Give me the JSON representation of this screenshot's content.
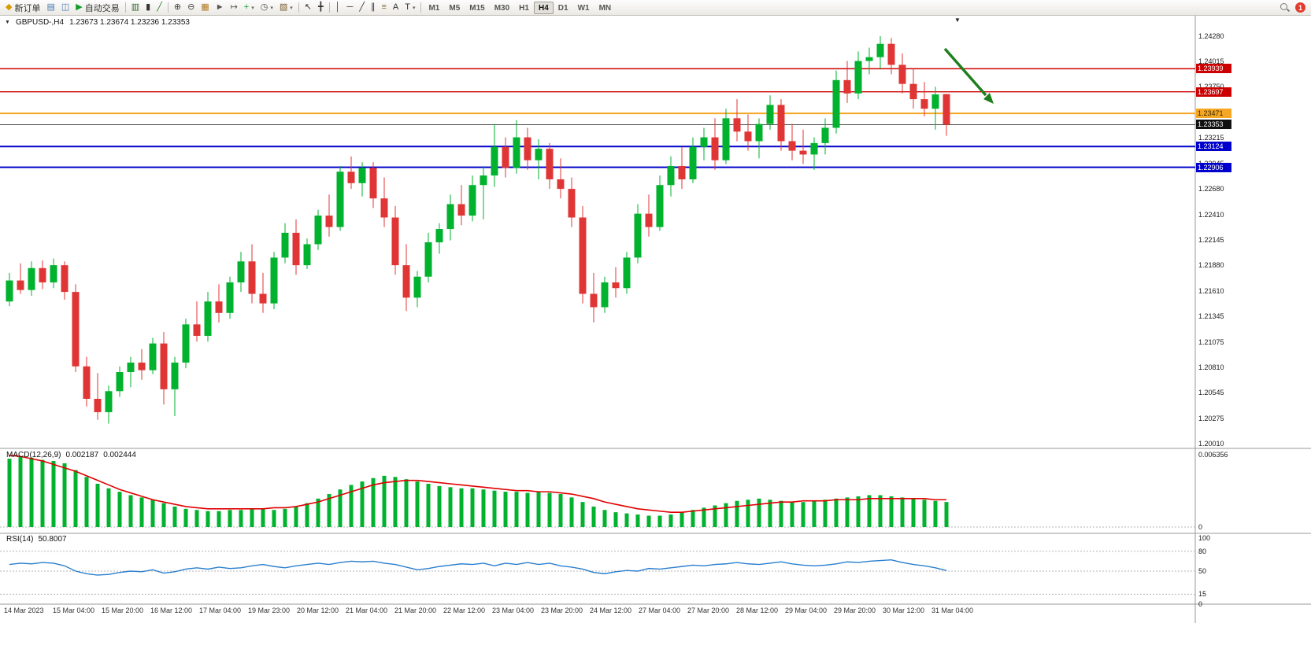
{
  "toolbar": {
    "badge_count": "1",
    "active_timeframe": "H4",
    "timeframes": [
      "M1",
      "M5",
      "M15",
      "M30",
      "H1",
      "H4",
      "D1",
      "W1",
      "MN"
    ],
    "buttons": [
      {
        "name": "new-order-button",
        "icon": "◆",
        "icon_color": "#d99a00",
        "label": "新订单"
      },
      {
        "name": "print-button",
        "icon": "▤",
        "icon_color": "#4a78b0"
      },
      {
        "name": "print-preview-button",
        "icon": "◫",
        "icon_color": "#4a78b0"
      },
      {
        "name": "autotrading-button",
        "icon": "▶",
        "icon_color": "#0f9d2a",
        "label": "自动交易"
      },
      {
        "sep": true
      },
      {
        "name": "bar-chart-button",
        "icon": "▥",
        "icon_color": "#356b2f"
      },
      {
        "name": "candlestick-chart-button",
        "icon": "▮",
        "icon_color": "#333333"
      },
      {
        "name": "line-chart-button",
        "icon": "╱",
        "icon_color": "#2d7a2d"
      },
      {
        "sep": true
      },
      {
        "name": "zoom-in-button",
        "icon": "⊕",
        "icon_color": "#444444"
      },
      {
        "name": "zoom-out-button",
        "icon": "⊖",
        "icon_color": "#444444"
      },
      {
        "name": "tile-windows-button",
        "icon": "▦",
        "icon_color": "#b07820"
      },
      {
        "name": "auto-scroll-button",
        "icon": "►",
        "icon_color": "#555555"
      },
      {
        "name": "chart-shift-button",
        "icon": "↦",
        "icon_color": "#555555"
      },
      {
        "name": "indicators-button",
        "icon": "+",
        "icon_color": "#0f9d2a",
        "caret": true
      },
      {
        "name": "periods-button",
        "icon": "◷",
        "icon_color": "#555555",
        "caret": true
      },
      {
        "name": "templates-button",
        "icon": "▨",
        "icon_color": "#7a5c2e",
        "caret": true
      },
      {
        "sep": true
      },
      {
        "name": "cursor-button",
        "icon": "↖",
        "icon_color": "#333333"
      },
      {
        "name": "crosshair-button",
        "icon": "╋",
        "icon_color": "#333333"
      },
      {
        "sep": true
      },
      {
        "name": "vertical-line-button",
        "icon": "│",
        "icon_color": "#333333"
      },
      {
        "name": "horizontal-line-button",
        "icon": "─",
        "icon_color": "#333333"
      },
      {
        "name": "trendline-button",
        "icon": "╱",
        "icon_color": "#333333"
      },
      {
        "name": "channel-button",
        "icon": "∥",
        "icon_color": "#333333"
      },
      {
        "name": "fibonacci-button",
        "icon": "≡",
        "icon_color": "#8a6d3b"
      },
      {
        "name": "text-button",
        "icon": "A",
        "icon_color": "#333333"
      },
      {
        "name": "arrows-button",
        "icon": "T",
        "icon_color": "#333333",
        "caret": true
      },
      {
        "sep": true
      }
    ]
  },
  "chart_data": {
    "type": "candlestick",
    "title": "GBPUSD-,H4",
    "ohlc_text": "1.23673 1.23674 1.23236 1.23353",
    "current": {
      "open": 1.23673,
      "high": 1.23674,
      "low": 1.23236,
      "close": 1.23353
    },
    "colors": {
      "up": "#00b22d",
      "down": "#e03535"
    },
    "price_axis": {
      "top": 1.2428,
      "bottom": 1.2001,
      "ticks": [
        "1.24280",
        "1.24015",
        "1.23750",
        "1.23480",
        "1.23215",
        "1.22945",
        "1.22680",
        "1.22410",
        "1.22145",
        "1.21880",
        "1.21610",
        "1.21345",
        "1.21075",
        "1.20810",
        "1.20545",
        "1.20275",
        "1.20010"
      ]
    },
    "time_ticks": [
      "14 Mar 2023",
      "15 Mar 04:00",
      "15 Mar 20:00",
      "16 Mar 12:00",
      "17 Mar 04:00",
      "19 Mar 23:00",
      "20 Mar 12:00",
      "21 Mar 04:00",
      "21 Mar 20:00",
      "22 Mar 12:00",
      "23 Mar 04:00",
      "23 Mar 20:00",
      "24 Mar 12:00",
      "27 Mar 04:00",
      "27 Mar 20:00",
      "28 Mar 12:00",
      "29 Mar 04:00",
      "29 Mar 20:00",
      "30 Mar 12:00",
      "31 Mar 04:00"
    ],
    "horizontal_lines": [
      {
        "price": 1.23939,
        "label": "1.23939",
        "color": "#cc0000",
        "tag_bg": "#cc0000",
        "tag_fg": "#ffffff",
        "width": 1.4
      },
      {
        "price": 1.23697,
        "label": "1.23697",
        "color": "#cc0000",
        "tag_bg": "#cc0000",
        "tag_fg": "#ffffff",
        "width": 1.4
      },
      {
        "price": 1.23471,
        "label": "1.23471",
        "color": "#f5a623",
        "tag_bg": "#f5a623",
        "tag_fg": "#3a2a00",
        "width": 2
      },
      {
        "price": 1.23353,
        "label": "1.23353",
        "color": "#505050",
        "tag_bg": "#111111",
        "tag_fg": "#ffffff",
        "width": 1
      },
      {
        "price": 1.23124,
        "label": "1.23124",
        "color": "#0000cc",
        "tag_bg": "#0000cc",
        "tag_fg": "#ffffff",
        "width": 2
      },
      {
        "price": 1.22906,
        "label": "1.22906",
        "color": "#0000cc",
        "tag_bg": "#0000cc",
        "tag_fg": "#ffffff",
        "width": 2
      }
    ],
    "annotation": {
      "type": "arrow",
      "direction": "down-right",
      "color": "#1e7e1e"
    },
    "candles": [
      [
        1.215,
        1.218,
        1.2145,
        1.2172
      ],
      [
        1.2172,
        1.219,
        1.2158,
        1.2162
      ],
      [
        1.2162,
        1.2192,
        1.2156,
        1.2185
      ],
      [
        1.2185,
        1.2193,
        1.2163,
        1.217
      ],
      [
        1.217,
        1.2195,
        1.2164,
        1.2188
      ],
      [
        1.2188,
        1.2192,
        1.2152,
        1.216
      ],
      [
        1.216,
        1.2168,
        1.2076,
        1.2082
      ],
      [
        1.2082,
        1.2092,
        1.204,
        1.2048
      ],
      [
        1.2048,
        1.2075,
        1.2026,
        1.2034
      ],
      [
        1.2034,
        1.2062,
        1.2022,
        1.2056
      ],
      [
        1.2056,
        1.2082,
        1.205,
        1.2076
      ],
      [
        1.2076,
        1.2092,
        1.206,
        1.2086
      ],
      [
        1.2086,
        1.21,
        1.2068,
        1.2078
      ],
      [
        1.2078,
        1.2112,
        1.2074,
        1.2106
      ],
      [
        1.2106,
        1.2118,
        1.2042,
        1.2058
      ],
      [
        1.2058,
        1.2092,
        1.203,
        1.2086
      ],
      [
        1.2086,
        1.2132,
        1.208,
        1.2126
      ],
      [
        1.2126,
        1.215,
        1.2108,
        1.2114
      ],
      [
        1.2114,
        1.216,
        1.2108,
        1.215
      ],
      [
        1.215,
        1.2168,
        1.2128,
        1.2138
      ],
      [
        1.2138,
        1.2176,
        1.2132,
        1.217
      ],
      [
        1.217,
        1.2202,
        1.216,
        1.2192
      ],
      [
        1.2192,
        1.221,
        1.2148,
        1.2158
      ],
      [
        1.2158,
        1.218,
        1.2138,
        1.2148
      ],
      [
        1.2148,
        1.2202,
        1.2142,
        1.2196
      ],
      [
        1.2196,
        1.2232,
        1.219,
        1.2222
      ],
      [
        1.2222,
        1.2236,
        1.2178,
        1.2188
      ],
      [
        1.2188,
        1.2216,
        1.2184,
        1.221
      ],
      [
        1.221,
        1.2246,
        1.2204,
        1.224
      ],
      [
        1.224,
        1.2262,
        1.2218,
        1.2228
      ],
      [
        1.2228,
        1.2292,
        1.2224,
        1.2286
      ],
      [
        1.2286,
        1.2302,
        1.2268,
        1.2274
      ],
      [
        1.2274,
        1.2296,
        1.226,
        1.229
      ],
      [
        1.229,
        1.2296,
        1.2248,
        1.2258
      ],
      [
        1.2258,
        1.228,
        1.2228,
        1.2238
      ],
      [
        1.2238,
        1.225,
        1.2178,
        1.2188
      ],
      [
        1.2188,
        1.221,
        1.214,
        1.2154
      ],
      [
        1.2154,
        1.2182,
        1.2144,
        1.2176
      ],
      [
        1.2176,
        1.2222,
        1.217,
        1.2212
      ],
      [
        1.2212,
        1.2232,
        1.22,
        1.2226
      ],
      [
        1.2226,
        1.2262,
        1.2214,
        1.2252
      ],
      [
        1.2252,
        1.2272,
        1.223,
        1.224
      ],
      [
        1.224,
        1.2282,
        1.2234,
        1.2272
      ],
      [
        1.2272,
        1.2292,
        1.2236,
        1.2282
      ],
      [
        1.2282,
        1.2336,
        1.227,
        1.2312
      ],
      [
        1.2312,
        1.2322,
        1.228,
        1.229
      ],
      [
        1.229,
        1.234,
        1.2284,
        1.2322
      ],
      [
        1.2322,
        1.2332,
        1.2288,
        1.2298
      ],
      [
        1.2298,
        1.232,
        1.2278,
        1.231
      ],
      [
        1.231,
        1.2316,
        1.2268,
        1.2278
      ],
      [
        1.2278,
        1.23,
        1.2258,
        1.2268
      ],
      [
        1.2268,
        1.228,
        1.2228,
        1.2238
      ],
      [
        1.2238,
        1.225,
        1.2148,
        1.2158
      ],
      [
        1.2158,
        1.218,
        1.2128,
        1.2144
      ],
      [
        1.2144,
        1.2176,
        1.2138,
        1.217
      ],
      [
        1.217,
        1.2186,
        1.2154,
        1.2164
      ],
      [
        1.2164,
        1.2202,
        1.2158,
        1.2196
      ],
      [
        1.2196,
        1.2252,
        1.219,
        1.2242
      ],
      [
        1.2242,
        1.2262,
        1.2218,
        1.2228
      ],
      [
        1.2228,
        1.2282,
        1.2224,
        1.2272
      ],
      [
        1.2272,
        1.2302,
        1.226,
        1.2292
      ],
      [
        1.2292,
        1.2312,
        1.2268,
        1.2278
      ],
      [
        1.2278,
        1.2322,
        1.2274,
        1.2312
      ],
      [
        1.2312,
        1.2332,
        1.2298,
        1.2322
      ],
      [
        1.2322,
        1.2342,
        1.2288,
        1.2298
      ],
      [
        1.2298,
        1.2352,
        1.2294,
        1.2342
      ],
      [
        1.2342,
        1.2362,
        1.2318,
        1.2328
      ],
      [
        1.2328,
        1.2346,
        1.2308,
        1.2318
      ],
      [
        1.2318,
        1.2342,
        1.23,
        1.2336
      ],
      [
        1.2336,
        1.2366,
        1.233,
        1.2356
      ],
      [
        1.2356,
        1.2362,
        1.2308,
        1.2318
      ],
      [
        1.2318,
        1.2336,
        1.2298,
        1.2308
      ],
      [
        1.2308,
        1.233,
        1.2294,
        1.2304
      ],
      [
        1.2304,
        1.2322,
        1.2288,
        1.2316
      ],
      [
        1.2316,
        1.2342,
        1.2304,
        1.2332
      ],
      [
        1.2332,
        1.2392,
        1.2326,
        1.2382
      ],
      [
        1.2382,
        1.2402,
        1.2358,
        1.2368
      ],
      [
        1.2368,
        1.2412,
        1.2362,
        1.2402
      ],
      [
        1.2402,
        1.2416,
        1.2388,
        1.2406
      ],
      [
        1.2406,
        1.2428,
        1.2394,
        1.242
      ],
      [
        1.242,
        1.2426,
        1.2388,
        1.2398
      ],
      [
        1.2398,
        1.241,
        1.2368,
        1.2378
      ],
      [
        1.2378,
        1.2394,
        1.2352,
        1.2362
      ],
      [
        1.2362,
        1.238,
        1.2344,
        1.2352
      ],
      [
        1.2352,
        1.2375,
        1.233,
        1.2367
      ],
      [
        1.23673,
        1.23674,
        1.23236,
        1.23353
      ]
    ],
    "macd": {
      "name": "MACD(12,26,9)",
      "main_value": "0.002187",
      "signal_value": "0.002444",
      "max": 0.006356,
      "max_label": "0.006356",
      "zero_label": "0",
      "histogram_color": "#00b22d",
      "signal_color": "#e00000",
      "histogram": [
        0.006,
        0.0062,
        0.0061,
        0.0059,
        0.0058,
        0.0056,
        0.005,
        0.0044,
        0.0038,
        0.0034,
        0.0031,
        0.0028,
        0.0026,
        0.0024,
        0.0021,
        0.0018,
        0.0016,
        0.0015,
        0.0014,
        0.0014,
        0.0015,
        0.0015,
        0.0016,
        0.0016,
        0.0015,
        0.0016,
        0.0018,
        0.0021,
        0.0025,
        0.0029,
        0.0033,
        0.0037,
        0.004,
        0.0043,
        0.0045,
        0.0044,
        0.0042,
        0.004,
        0.0038,
        0.0036,
        0.0035,
        0.0034,
        0.0034,
        0.0033,
        0.0032,
        0.0031,
        0.0031,
        0.003,
        0.0031,
        0.003,
        0.0029,
        0.0026,
        0.0022,
        0.0018,
        0.0015,
        0.0013,
        0.0012,
        0.0011,
        0.001,
        0.001,
        0.0011,
        0.0013,
        0.0015,
        0.0017,
        0.0019,
        0.0021,
        0.0023,
        0.0024,
        0.0025,
        0.0024,
        0.0023,
        0.0022,
        0.0022,
        0.0023,
        0.0024,
        0.0025,
        0.0026,
        0.0027,
        0.0028,
        0.0028,
        0.0027,
        0.0026,
        0.0025,
        0.0024,
        0.0023,
        0.0022
      ],
      "signal": [
        0.0063,
        0.0062,
        0.006,
        0.0058,
        0.0055,
        0.0052,
        0.0049,
        0.0045,
        0.0041,
        0.0037,
        0.0033,
        0.003,
        0.0027,
        0.0024,
        0.0022,
        0.002,
        0.0018,
        0.0017,
        0.0016,
        0.0016,
        0.0016,
        0.0016,
        0.0016,
        0.0016,
        0.0017,
        0.0017,
        0.0018,
        0.002,
        0.0022,
        0.0025,
        0.0028,
        0.0031,
        0.0034,
        0.0037,
        0.0039,
        0.004,
        0.0041,
        0.0041,
        0.004,
        0.0039,
        0.0038,
        0.0037,
        0.0036,
        0.0035,
        0.0034,
        0.0033,
        0.0032,
        0.0032,
        0.0031,
        0.0031,
        0.003,
        0.0029,
        0.0027,
        0.0025,
        0.0022,
        0.002,
        0.0018,
        0.0016,
        0.0015,
        0.0014,
        0.0013,
        0.0013,
        0.0014,
        0.0015,
        0.0016,
        0.0017,
        0.0018,
        0.0019,
        0.002,
        0.0021,
        0.0022,
        0.0022,
        0.0023,
        0.0023,
        0.0023,
        0.0024,
        0.0024,
        0.0024,
        0.0025,
        0.0025,
        0.0025,
        0.0025,
        0.0025,
        0.0025,
        0.0024,
        0.0024
      ]
    },
    "rsi": {
      "name": "RSI(14)",
      "value": "50.8007",
      "line_color": "#2a7fce",
      "levels": [
        80,
        50,
        15
      ],
      "axis_ticks": [
        "100",
        "80",
        "50",
        "15",
        "0"
      ],
      "series": [
        60,
        62,
        61,
        63,
        62,
        58,
        50,
        46,
        44,
        45,
        48,
        50,
        49,
        52,
        47,
        49,
        53,
        55,
        53,
        56,
        54,
        55,
        58,
        60,
        57,
        55,
        58,
        60,
        62,
        60,
        63,
        65,
        64,
        65,
        62,
        60,
        56,
        52,
        54,
        57,
        59,
        61,
        60,
        62,
        58,
        62,
        60,
        63,
        60,
        62,
        58,
        56,
        53,
        48,
        46,
        49,
        51,
        50,
        54,
        53,
        55,
        57,
        59,
        58,
        60,
        61,
        63,
        61,
        60,
        62,
        64,
        61,
        59,
        58,
        59,
        61,
        64,
        63,
        65,
        66,
        67,
        63,
        60,
        58,
        55,
        50.8
      ]
    }
  }
}
